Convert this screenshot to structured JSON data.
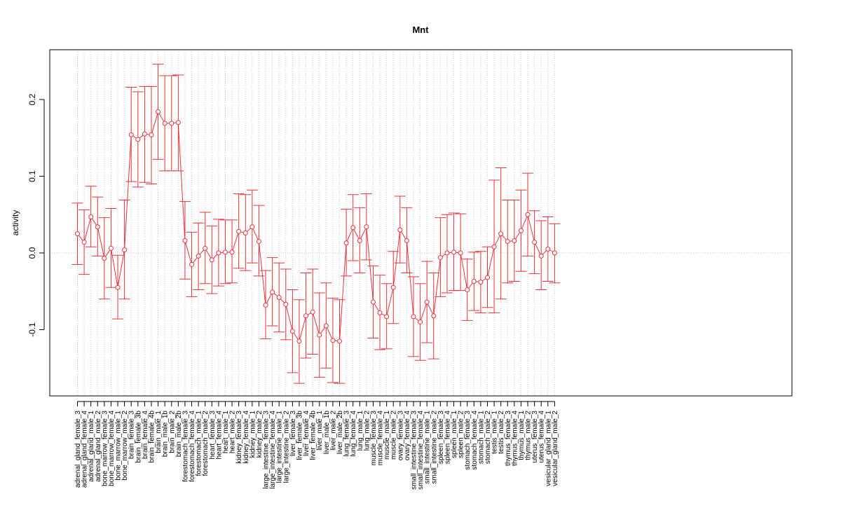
{
  "chart_data": {
    "type": "line",
    "title": "Mnt",
    "xlabel": "",
    "ylabel": "activity",
    "ylim": [
      -0.18,
      0.25
    ],
    "yticks": [
      -0.1,
      0.0,
      0.1,
      0.2
    ],
    "ytick_labels": [
      "-0.1",
      "0.0",
      "0.1",
      "0.2"
    ],
    "grid": "vertical dotted + y=0 dotted",
    "colors": {
      "series": "#e8303a",
      "grid": "#c8c8c8",
      "axis": "#000000"
    },
    "categories": [
      "adrenal_gland_female_3",
      "adrenal_gland_female_4",
      "adrenal_gland_male_1",
      "adrenal_gland_male_2",
      "bone_marrow_female_3",
      "bone_marrow_female_4",
      "bone_marrow_male_1",
      "bone_marrow_male_2",
      "brain_female_3",
      "brain_female_3b",
      "brain_female_4",
      "brain_female_4b",
      "brain_male_1",
      "brain_male_1b",
      "brain_male_2",
      "brain_male_2b",
      "forestomach_female_3",
      "forestomach_female_4",
      "forestomach_male_1",
      "forestomach_male_2",
      "heart_female_3",
      "heart_female_4",
      "heart_male_1",
      "heart_male_2",
      "kidney_female_3",
      "kidney_female_4",
      "kidney_male_1",
      "kidney_male_2",
      "large_intestine_female_3",
      "large_intestine_female_4",
      "large_intestine_male_1",
      "large_intestine_male_2",
      "liver_female_3",
      "liver_female_3b",
      "liver_female_4",
      "liver_female_4b",
      "liver_male_1",
      "liver_male_1b",
      "liver_male_2",
      "liver_male_2b",
      "lung_female_3",
      "lung_female_4",
      "lung_male_1",
      "lung_male_2",
      "muscle_female_3",
      "muscle_female_4",
      "muscle_male_1",
      "muscle_male_2",
      "ovary_female_3",
      "ovary_female_4",
      "small_intestine_female_3",
      "small_intestine_female_4",
      "small_intestine_male_1",
      "small_intestine_male_2",
      "spleen_female_3",
      "spleen_female_4",
      "spleen_male_1",
      "spleen_male_2",
      "stomach_female_3",
      "stomach_female_4",
      "stomach_male_1",
      "stomach_male_2",
      "testis_male_1",
      "testis_male_2",
      "thymus_female_3",
      "thymus_female_4",
      "thymus_male_1",
      "thymus_male_2",
      "uterus_female_3",
      "uterus_female_4",
      "vesicular_gland_male_1",
      "vesicular_gland_male_2"
    ],
    "values": [
      0.025,
      0.014,
      0.047,
      0.034,
      -0.007,
      0.006,
      -0.045,
      0.004,
      0.154,
      0.148,
      0.155,
      0.154,
      0.184,
      0.169,
      0.169,
      0.17,
      0.016,
      -0.015,
      -0.004,
      0.006,
      -0.009,
      0.0,
      0.001,
      0.001,
      0.028,
      0.026,
      0.034,
      0.015,
      -0.068,
      -0.051,
      -0.058,
      -0.067,
      -0.102,
      -0.115,
      -0.082,
      -0.077,
      -0.107,
      -0.095,
      -0.114,
      -0.115,
      0.013,
      0.033,
      0.016,
      0.034,
      -0.064,
      -0.078,
      -0.083,
      -0.045,
      0.03,
      0.016,
      -0.083,
      -0.09,
      -0.064,
      -0.082,
      -0.006,
      0.0,
      0.001,
      0.0,
      -0.048,
      -0.037,
      -0.038,
      -0.032,
      0.008,
      0.025,
      0.015,
      0.016,
      0.029,
      0.05,
      0.014,
      -0.004,
      0.005,
      0.0
    ],
    "lower": [
      -0.015,
      -0.028,
      0.008,
      -0.004,
      -0.06,
      -0.045,
      -0.086,
      -0.06,
      0.093,
      0.086,
      0.092,
      0.09,
      0.122,
      0.107,
      0.107,
      0.107,
      -0.034,
      -0.057,
      -0.048,
      -0.04,
      -0.053,
      -0.043,
      -0.04,
      -0.039,
      -0.02,
      -0.023,
      -0.013,
      -0.03,
      -0.112,
      -0.095,
      -0.103,
      -0.113,
      -0.156,
      -0.17,
      -0.137,
      -0.132,
      -0.162,
      -0.15,
      -0.169,
      -0.17,
      -0.03,
      -0.01,
      -0.026,
      -0.009,
      -0.111,
      -0.126,
      -0.125,
      -0.092,
      -0.013,
      -0.026,
      -0.135,
      -0.14,
      -0.117,
      -0.138,
      -0.057,
      -0.052,
      -0.049,
      -0.049,
      -0.088,
      -0.075,
      -0.078,
      -0.071,
      -0.078,
      -0.06,
      -0.039,
      -0.037,
      -0.024,
      -0.004,
      -0.027,
      -0.048,
      -0.037,
      -0.039
    ],
    "upper": [
      0.065,
      0.056,
      0.087,
      0.073,
      0.046,
      0.058,
      -0.003,
      0.069,
      0.216,
      0.21,
      0.217,
      0.217,
      0.246,
      0.231,
      0.231,
      0.232,
      0.067,
      0.027,
      0.039,
      0.053,
      0.035,
      0.044,
      0.043,
      0.043,
      0.077,
      0.076,
      0.082,
      0.062,
      -0.023,
      -0.006,
      -0.013,
      -0.021,
      -0.048,
      -0.061,
      -0.026,
      -0.021,
      -0.052,
      -0.039,
      -0.059,
      -0.061,
      0.057,
      0.076,
      0.059,
      0.077,
      -0.017,
      -0.029,
      -0.04,
      0.002,
      0.074,
      0.059,
      -0.031,
      -0.04,
      -0.011,
      -0.026,
      0.046,
      0.05,
      0.052,
      0.051,
      -0.008,
      0.001,
      0.002,
      0.008,
      0.095,
      0.111,
      0.069,
      0.069,
      0.082,
      0.104,
      0.055,
      0.042,
      0.047,
      0.038
    ]
  }
}
